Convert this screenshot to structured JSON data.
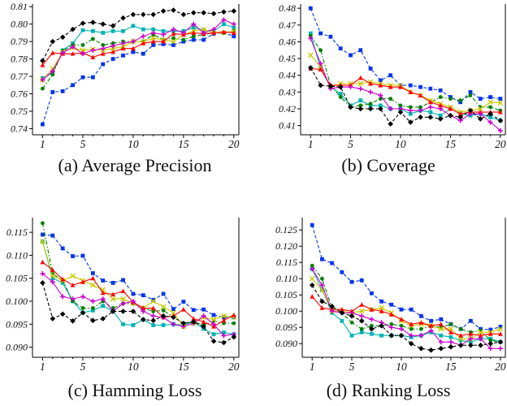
{
  "page": {
    "background": "#ffffff"
  },
  "colors": {
    "blue": "#0033EE",
    "cyan": "#00B4B4",
    "green": "#008000",
    "yellow": "#C9C900",
    "red": "#FF0000",
    "magenta": "#CC00CC",
    "black": "#000000"
  },
  "chart_data": [
    {
      "id": "a",
      "type": "line",
      "caption": "(a) Average Precision",
      "x": [
        1,
        2,
        3,
        4,
        5,
        6,
        7,
        8,
        9,
        10,
        11,
        12,
        13,
        14,
        15,
        16,
        17,
        18,
        19,
        20
      ],
      "x_ticks_major": [
        1,
        5,
        10,
        15,
        20
      ],
      "x_range": [
        0,
        20.5
      ],
      "y_range": [
        0.7365,
        0.8115
      ],
      "y_ticks": {
        "values": [
          0.74,
          0.75,
          0.76,
          0.77,
          0.78,
          0.79,
          0.8,
          0.81
        ],
        "labels": [
          "0.74",
          "0.75",
          "0.76",
          "0.77",
          "0.78",
          "0.79",
          "0.80",
          "0.81"
        ]
      },
      "grid": false,
      "legend": "none",
      "series": [
        {
          "name": "blue-series",
          "color": "#0033EE",
          "marker": "square",
          "dash": "4 2.4",
          "values": [
            0.7425,
            0.761,
            0.7615,
            0.765,
            0.7695,
            0.7695,
            0.777,
            0.78,
            0.782,
            0.784,
            0.783,
            0.788,
            0.7885,
            0.788,
            0.79,
            0.791,
            0.791,
            0.7945,
            0.795,
            0.793
          ]
        },
        {
          "name": "cyan-series",
          "color": "#00B4B4",
          "marker": "square",
          "dash": "",
          "values": [
            0.769,
            0.772,
            0.785,
            0.789,
            0.7965,
            0.796,
            0.795,
            0.796,
            0.796,
            0.799,
            0.797,
            0.797,
            0.796,
            0.796,
            0.796,
            0.798,
            0.7965,
            0.796,
            0.8,
            0.798
          ]
        },
        {
          "name": "green-series",
          "color": "#008000",
          "marker": "circle",
          "dash": "5 2.2 1.6 2.2",
          "values": [
            0.763,
            0.771,
            0.7845,
            0.788,
            0.788,
            0.7915,
            0.788,
            0.789,
            0.79,
            0.79,
            0.79,
            0.794,
            0.791,
            0.792,
            0.791,
            0.793,
            0.794,
            0.795,
            0.795,
            0.796
          ]
        },
        {
          "name": "yellow-series",
          "color": "#C9C900",
          "marker": "x",
          "dash": "",
          "values": [
            0.768,
            0.7745,
            0.784,
            0.7865,
            0.785,
            0.7855,
            0.785,
            0.786,
            0.787,
            0.79,
            0.79,
            0.792,
            0.791,
            0.79,
            0.794,
            0.796,
            0.797,
            0.795,
            0.795,
            0.796
          ]
        },
        {
          "name": "red-series",
          "color": "#FF0000",
          "marker": "triangle",
          "dash": "",
          "values": [
            0.7765,
            0.7835,
            0.783,
            0.783,
            0.7835,
            0.781,
            0.783,
            0.784,
            0.786,
            0.786,
            0.789,
            0.79,
            0.79,
            0.7945,
            0.794,
            0.795,
            0.7945,
            0.795,
            0.7955,
            0.795
          ]
        },
        {
          "name": "magenta-series",
          "color": "#CC00CC",
          "marker": "plus",
          "dash": "",
          "values": [
            0.768,
            0.773,
            0.7835,
            0.787,
            0.783,
            0.785,
            0.786,
            0.7875,
            0.789,
            0.79,
            0.793,
            0.795,
            0.794,
            0.797,
            0.795,
            0.8,
            0.795,
            0.797,
            0.8025,
            0.8
          ]
        },
        {
          "name": "black-series",
          "color": "#000000",
          "marker": "diamond",
          "dash": "4 2.4",
          "values": [
            0.779,
            0.79,
            0.7925,
            0.797,
            0.8005,
            0.801,
            0.8,
            0.799,
            0.8035,
            0.8055,
            0.8055,
            0.8055,
            0.8075,
            0.808,
            0.8055,
            0.8065,
            0.8065,
            0.806,
            0.807,
            0.8075
          ]
        }
      ]
    },
    {
      "id": "b",
      "type": "line",
      "caption": "(b) Coverage",
      "x": [
        1,
        2,
        3,
        4,
        5,
        6,
        7,
        8,
        9,
        10,
        11,
        12,
        13,
        14,
        15,
        16,
        17,
        18,
        19,
        20
      ],
      "x_ticks_major": [
        1,
        5,
        10,
        15,
        20
      ],
      "x_range": [
        0,
        20.5
      ],
      "y_range": [
        0.4045,
        0.4825
      ],
      "y_ticks": {
        "values": [
          0.41,
          0.42,
          0.43,
          0.44,
          0.45,
          0.46,
          0.47,
          0.48
        ],
        "labels": [
          "0.41",
          "0.42",
          "0.43",
          "0.44",
          "0.45",
          "0.46",
          "0.47",
          "0.48"
        ]
      },
      "grid": false,
      "legend": "none",
      "series": [
        {
          "name": "blue-series",
          "color": "#0033EE",
          "marker": "square",
          "dash": "4 2.4",
          "values": [
            0.48,
            0.465,
            0.463,
            0.456,
            0.452,
            0.455,
            0.444,
            0.437,
            0.44,
            0.434,
            0.434,
            0.433,
            0.432,
            0.431,
            0.427,
            0.424,
            0.43,
            0.426,
            0.427,
            0.426
          ]
        },
        {
          "name": "cyan-series",
          "color": "#00B4B4",
          "marker": "square",
          "dash": "",
          "values": [
            0.465,
            0.444,
            0.433,
            0.429,
            0.422,
            0.425,
            0.422,
            0.422,
            0.42,
            0.42,
            0.417,
            0.419,
            0.418,
            0.416,
            0.42,
            0.417,
            0.416,
            0.417,
            0.415,
            0.413
          ]
        },
        {
          "name": "green-series",
          "color": "#008000",
          "marker": "circle",
          "dash": "5 2.2 1.6 2.2",
          "values": [
            0.4635,
            0.455,
            0.434,
            0.427,
            0.421,
            0.422,
            0.423,
            0.426,
            0.426,
            0.422,
            0.421,
            0.421,
            0.424,
            0.427,
            0.426,
            0.425,
            0.428,
            0.421,
            0.421,
            0.419
          ]
        },
        {
          "name": "yellow-series",
          "color": "#C9C900",
          "marker": "x",
          "dash": "",
          "values": [
            0.452,
            0.445,
            0.433,
            0.435,
            0.435,
            0.435,
            0.436,
            0.435,
            0.434,
            0.434,
            0.43,
            0.428,
            0.425,
            0.423,
            0.421,
            0.418,
            0.419,
            0.42,
            0.424,
            0.4235
          ]
        },
        {
          "name": "red-series",
          "color": "#FF0000",
          "marker": "triangle",
          "dash": "",
          "values": [
            0.444,
            0.4435,
            0.434,
            0.434,
            0.434,
            0.4385,
            0.435,
            0.434,
            0.433,
            0.433,
            0.43,
            0.428,
            0.424,
            0.422,
            0.42,
            0.417,
            0.418,
            0.418,
            0.418,
            0.418
          ]
        },
        {
          "name": "magenta-series",
          "color": "#CC00CC",
          "marker": "plus",
          "dash": "",
          "values": [
            0.462,
            0.447,
            0.432,
            0.433,
            0.433,
            0.432,
            0.43,
            0.428,
            0.42,
            0.42,
            0.419,
            0.419,
            0.421,
            0.42,
            0.416,
            0.413,
            0.417,
            0.417,
            0.412,
            0.407
          ]
        },
        {
          "name": "black-series",
          "color": "#000000",
          "marker": "diamond",
          "dash": "4 2.4",
          "values": [
            0.4445,
            0.434,
            0.4335,
            0.433,
            0.421,
            0.42,
            0.42,
            0.42,
            0.411,
            0.418,
            0.412,
            0.415,
            0.415,
            0.414,
            0.416,
            0.415,
            0.419,
            0.414,
            0.417,
            0.413
          ]
        }
      ]
    },
    {
      "id": "c",
      "type": "line",
      "caption": "(c) Hamming Loss",
      "x": [
        1,
        2,
        3,
        4,
        5,
        6,
        7,
        8,
        9,
        10,
        11,
        12,
        13,
        14,
        15,
        16,
        17,
        18,
        19,
        20
      ],
      "x_ticks_major": [
        1,
        5,
        10,
        15,
        20
      ],
      "x_range": [
        0,
        20.5
      ],
      "y_range": [
        0.0878,
        0.1182
      ],
      "y_ticks": {
        "values": [
          0.09,
          0.095,
          0.1,
          0.105,
          0.11,
          0.115
        ],
        "labels": [
          "0.090",
          "0.095",
          "0.100",
          "0.105",
          "0.110",
          "0.115"
        ]
      },
      "grid": false,
      "legend": "none",
      "series": [
        {
          "name": "blue-series",
          "color": "#0033EE",
          "marker": "square",
          "dash": "4 2.4",
          "values": [
            0.1145,
            0.1143,
            0.1115,
            0.1098,
            0.1099,
            0.1061,
            0.1045,
            0.104,
            0.1046,
            0.1016,
            0.1013,
            0.1003,
            0.1016,
            0.0983,
            0.0999,
            0.0981,
            0.0982,
            0.097,
            0.0965,
            0.0965
          ]
        },
        {
          "name": "cyan-series",
          "color": "#00B4B4",
          "marker": "square",
          "dash": "",
          "values": [
            0.113,
            0.105,
            0.104,
            0.1,
            0.0975,
            0.098,
            0.099,
            0.0978,
            0.095,
            0.0948,
            0.096,
            0.0948,
            0.0948,
            0.095,
            0.0948,
            0.0955,
            0.094,
            0.0928,
            0.0932,
            0.0928
          ]
        },
        {
          "name": "green-series",
          "color": "#008000",
          "marker": "circle",
          "dash": "5 2.2 1.6 2.2",
          "values": [
            0.117,
            0.106,
            0.1045,
            0.1,
            0.0985,
            0.0985,
            0.1,
            0.0985,
            0.0995,
            0.0995,
            0.0985,
            0.0978,
            0.098,
            0.0965,
            0.0952,
            0.0955,
            0.0948,
            0.0957,
            0.0952,
            0.0952
          ]
        },
        {
          "name": "yellow-series",
          "color": "#C9C900",
          "marker": "x",
          "dash": "",
          "values": [
            0.113,
            0.1055,
            0.1045,
            0.1055,
            0.1045,
            0.1035,
            0.1025,
            0.1005,
            0.1005,
            0.0995,
            0.0985,
            0.1,
            0.0988,
            0.0975,
            0.0945,
            0.0952,
            0.0965,
            0.096,
            0.0968,
            0.0965
          ]
        },
        {
          "name": "red-series",
          "color": "#FF0000",
          "marker": "triangle",
          "dash": "",
          "values": [
            0.1085,
            0.1068,
            0.1048,
            0.1035,
            0.1042,
            0.105,
            0.1018,
            0.1015,
            0.1022,
            0.0998,
            0.0985,
            0.0985,
            0.0965,
            0.0968,
            0.0982,
            0.0962,
            0.0955,
            0.0945,
            0.0958,
            0.097
          ]
        },
        {
          "name": "magenta-series",
          "color": "#CC00CC",
          "marker": "plus",
          "dash": "",
          "values": [
            0.106,
            0.1042,
            0.101,
            0.1005,
            0.101,
            0.1,
            0.1005,
            0.0978,
            0.0995,
            0.1,
            0.0978,
            0.0968,
            0.0965,
            0.095,
            0.0945,
            0.0952,
            0.0968,
            0.095,
            0.0925,
            0.0928
          ]
        },
        {
          "name": "black-series",
          "color": "#000000",
          "marker": "diamond",
          "dash": "4 2.4",
          "values": [
            0.104,
            0.0962,
            0.0972,
            0.0957,
            0.0975,
            0.0958,
            0.0962,
            0.0978,
            0.0978,
            0.0978,
            0.096,
            0.0958,
            0.0968,
            0.0965,
            0.0952,
            0.0955,
            0.0945,
            0.0913,
            0.091,
            0.0922
          ]
        }
      ]
    },
    {
      "id": "d",
      "type": "line",
      "caption": "(d) Ranking Loss",
      "x": [
        1,
        2,
        3,
        4,
        5,
        6,
        7,
        8,
        9,
        10,
        11,
        12,
        13,
        14,
        15,
        16,
        17,
        18,
        19,
        20
      ],
      "x_ticks_major": [
        1,
        5,
        10,
        15,
        20
      ],
      "x_range": [
        0,
        20.5
      ],
      "y_range": [
        0.0858,
        0.1288
      ],
      "y_ticks": {
        "values": [
          0.09,
          0.095,
          0.1,
          0.105,
          0.11,
          0.115,
          0.12,
          0.125
        ],
        "labels": [
          "0.090",
          "0.095",
          "0.100",
          "0.105",
          "0.110",
          "0.115",
          "0.120",
          "0.125"
        ]
      },
      "grid": false,
      "legend": "none",
      "series": [
        {
          "name": "blue-series",
          "color": "#0033EE",
          "marker": "square",
          "dash": "4 2.4",
          "values": [
            0.1265,
            0.116,
            0.1148,
            0.112,
            0.109,
            0.1095,
            0.1055,
            0.103,
            0.102,
            0.1005,
            0.1005,
            0.0985,
            0.097,
            0.0975,
            0.096,
            0.0945,
            0.097,
            0.0945,
            0.0943,
            0.0952
          ]
        },
        {
          "name": "cyan-series",
          "color": "#00B4B4",
          "marker": "square",
          "dash": "",
          "values": [
            0.113,
            0.1065,
            0.0995,
            0.097,
            0.0925,
            0.0935,
            0.093,
            0.0925,
            0.0925,
            0.0925,
            0.092,
            0.0925,
            0.0935,
            0.0925,
            0.092,
            0.091,
            0.0905,
            0.0915,
            0.0915,
            0.0905
          ]
        },
        {
          "name": "green-series",
          "color": "#008000",
          "marker": "circle",
          "dash": "5 2.2 1.6 2.2",
          "values": [
            0.114,
            0.11,
            0.101,
            0.0995,
            0.0965,
            0.0945,
            0.0955,
            0.0955,
            0.096,
            0.0955,
            0.0945,
            0.0945,
            0.0955,
            0.095,
            0.096,
            0.0945,
            0.0935,
            0.094,
            0.091,
            0.0905
          ]
        },
        {
          "name": "yellow-series",
          "color": "#C9C900",
          "marker": "x",
          "dash": "",
          "values": [
            0.11,
            0.1065,
            0.1,
            0.1,
            0.0995,
            0.1,
            0.1005,
            0.101,
            0.0995,
            0.097,
            0.0955,
            0.096,
            0.0955,
            0.0945,
            0.0945,
            0.0915,
            0.0915,
            0.0935,
            0.0935,
            0.0945
          ]
        },
        {
          "name": "red-series",
          "color": "#FF0000",
          "marker": "triangle",
          "dash": "",
          "values": [
            0.1045,
            0.101,
            0.1005,
            0.1005,
            0.1,
            0.102,
            0.1005,
            0.1,
            0.099,
            0.0975,
            0.096,
            0.0965,
            0.0955,
            0.096,
            0.0935,
            0.0925,
            0.093,
            0.0925,
            0.093,
            0.093
          ]
        },
        {
          "name": "magenta-series",
          "color": "#CC00CC",
          "marker": "plus",
          "dash": "",
          "values": [
            0.113,
            0.108,
            0.1,
            0.0995,
            0.0995,
            0.0985,
            0.0975,
            0.0965,
            0.095,
            0.0945,
            0.0925,
            0.0925,
            0.094,
            0.0905,
            0.0905,
            0.0895,
            0.0915,
            0.0915,
            0.0885,
            0.0885
          ]
        },
        {
          "name": "black-series",
          "color": "#000000",
          "marker": "diamond",
          "dash": "4 2.4",
          "values": [
            0.108,
            0.103,
            0.1015,
            0.0995,
            0.0985,
            0.097,
            0.0945,
            0.0955,
            0.0925,
            0.0925,
            0.09,
            0.0885,
            0.088,
            0.0885,
            0.089,
            0.0895,
            0.0895,
            0.0895,
            0.09,
            0.0905
          ]
        }
      ]
    }
  ]
}
